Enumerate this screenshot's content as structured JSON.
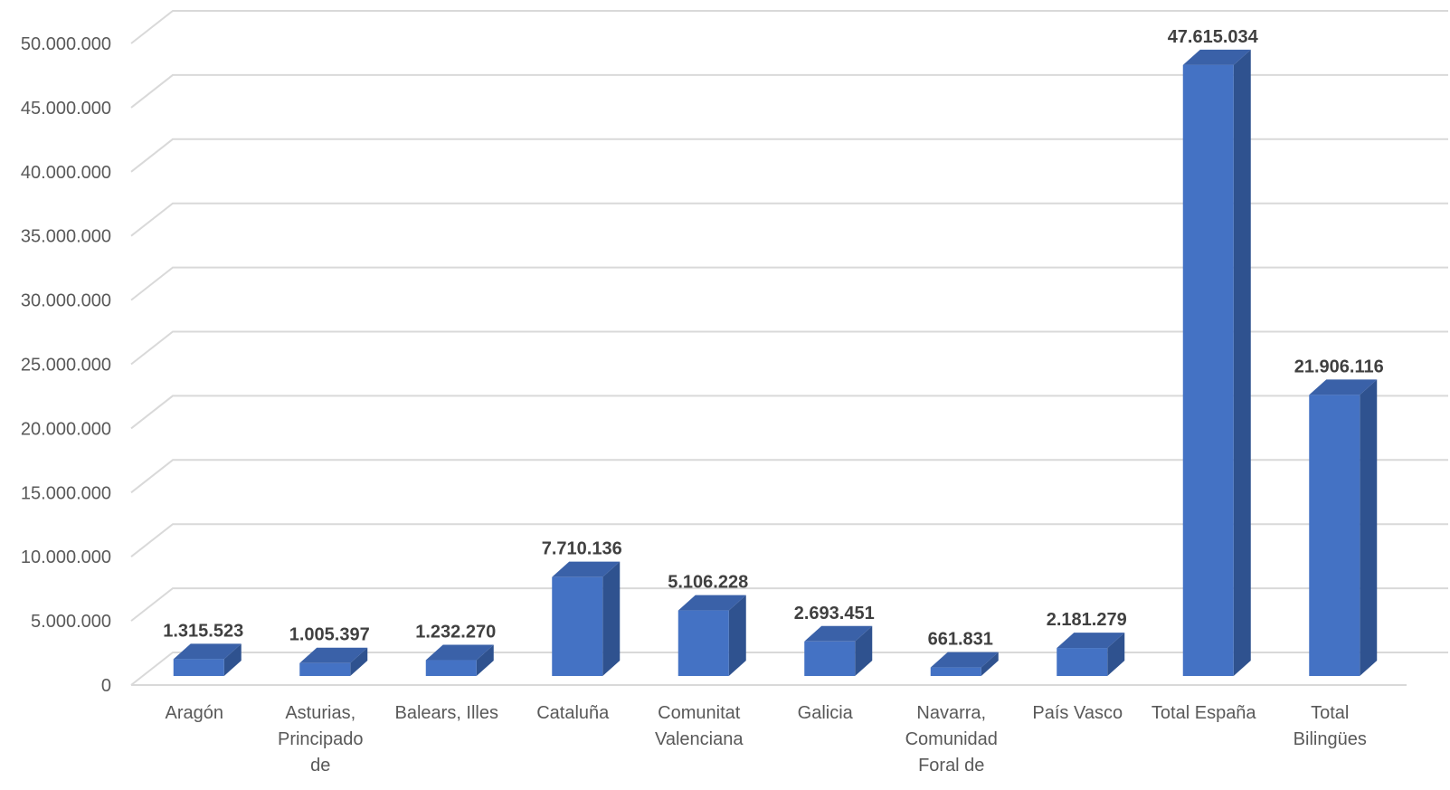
{
  "chart_data": {
    "type": "bar",
    "style": "3d-column",
    "categories": [
      [
        "Aragón"
      ],
      [
        "Asturias,",
        "Principado",
        "de"
      ],
      [
        "Balears, Illes"
      ],
      [
        "Cataluña"
      ],
      [
        "Comunitat",
        "Valenciana"
      ],
      [
        "Galicia"
      ],
      [
        "Navarra,",
        "Comunidad",
        "Foral de"
      ],
      [
        "País Vasco"
      ],
      [
        "Total España"
      ],
      [
        "Total",
        "Bilingües"
      ]
    ],
    "values": [
      1315523,
      1005397,
      1232270,
      7710136,
      5106228,
      2693451,
      661831,
      2181279,
      47615034,
      21906116
    ],
    "data_labels": [
      "1.315.523",
      "1.005.397",
      "1.232.270",
      "7.710.136",
      "5.106.228",
      "2.693.451",
      "661.831",
      "2.181.279",
      "47.615.034",
      "21.906.116"
    ],
    "yticks": [
      0,
      5000000,
      10000000,
      15000000,
      20000000,
      25000000,
      30000000,
      35000000,
      40000000,
      45000000,
      50000000
    ],
    "ytick_labels": [
      "0",
      "5.000.000",
      "10.000.000",
      "15.000.000",
      "20.000.000",
      "25.000.000",
      "30.000.000",
      "35.000.000",
      "40.000.000",
      "45.000.000",
      "50.000.000"
    ],
    "ylim": [
      0,
      50000000
    ],
    "grid": true,
    "legend": "none",
    "colors": {
      "bar_front": "#4472C4",
      "bar_side": "#2F528F",
      "bar_top": "#3A61A8",
      "grid": "#D9D9D9",
      "floor": "#D9D9D9"
    },
    "title": "",
    "xlabel": "",
    "ylabel": ""
  }
}
